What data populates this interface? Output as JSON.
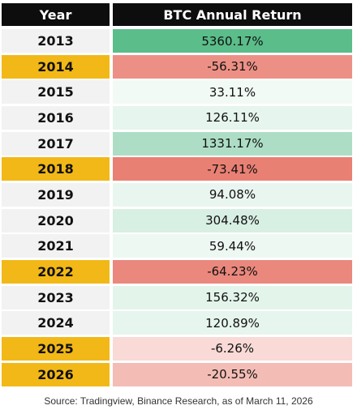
{
  "chart_data": {
    "type": "table",
    "columns": [
      "Year",
      "BTC Annual Return"
    ],
    "rows": [
      {
        "year": "2013",
        "return": "5360.17%",
        "value": 5360.17
      },
      {
        "year": "2014",
        "return": "-56.31%",
        "value": -56.31
      },
      {
        "year": "2015",
        "return": "33.11%",
        "value": 33.11
      },
      {
        "year": "2016",
        "return": "126.11%",
        "value": 126.11
      },
      {
        "year": "2017",
        "return": "1331.17%",
        "value": 1331.17
      },
      {
        "year": "2018",
        "return": "-73.41%",
        "value": -73.41
      },
      {
        "year": "2019",
        "return": "94.08%",
        "value": 94.08
      },
      {
        "year": "2020",
        "return": "304.48%",
        "value": 304.48
      },
      {
        "year": "2021",
        "return": "59.44%",
        "value": 59.44
      },
      {
        "year": "2022",
        "return": "-64.23%",
        "value": -64.23
      },
      {
        "year": "2023",
        "return": "156.32%",
        "value": 156.32
      },
      {
        "year": "2024",
        "return": "120.89%",
        "value": 120.89
      },
      {
        "year": "2025",
        "return": "-6.26%",
        "value": -6.26
      },
      {
        "year": "2026",
        "return": "-20.55%",
        "value": -20.55
      }
    ]
  },
  "source": "Source: Tradingview, Binance Research, as of March 11, 2026",
  "colors": {
    "header_bg": "#0d0d0d",
    "negative_year_bg": "#f2b817",
    "year_bg": "#f2f2f2",
    "positive_max": "#5bbd8a",
    "negative_max": "#e98074"
  }
}
